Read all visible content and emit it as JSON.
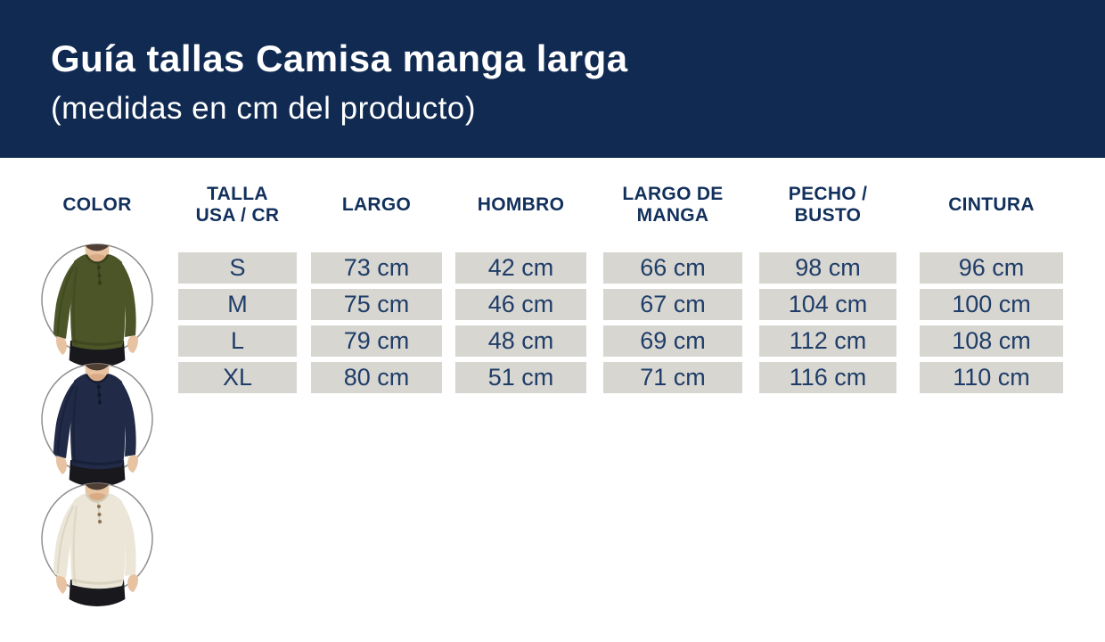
{
  "header": {
    "title": "Guía tallas Camisa manga larga",
    "subtitle": "(medidas en cm del producto)"
  },
  "table": {
    "columns": [
      {
        "id": "color",
        "label": "COLOR"
      },
      {
        "id": "size",
        "label": "TALLA\nUSA / CR"
      },
      {
        "id": "largo",
        "label": "LARGO"
      },
      {
        "id": "hombro",
        "label": "HOMBRO"
      },
      {
        "id": "manga",
        "label": "LARGO DE\nMANGA"
      },
      {
        "id": "pecho",
        "label": "PECHO /\nBUSTO"
      },
      {
        "id": "cintura",
        "label": "CINTURA"
      }
    ],
    "rows": [
      {
        "size": "S",
        "largo": "73 cm",
        "hombro": "42 cm",
        "manga": "66 cm",
        "pecho": "98 cm",
        "cintura": "96 cm"
      },
      {
        "size": "M",
        "largo": "75 cm",
        "hombro": "46 cm",
        "manga": "67 cm",
        "pecho": "104 cm",
        "cintura": "100 cm"
      },
      {
        "size": "L",
        "largo": "79 cm",
        "hombro": "48 cm",
        "manga": "69 cm",
        "pecho": "112 cm",
        "cintura": "108 cm"
      },
      {
        "size": "XL",
        "largo": "80 cm",
        "hombro": "51 cm",
        "manga": "71 cm",
        "pecho": "116 cm",
        "cintura": "110 cm"
      }
    ]
  },
  "products": [
    {
      "id": "verde-olivo",
      "name": "shirt-photo-olive-green",
      "shirt_hex": "#4b5527",
      "shade_hex": "#39421d",
      "button_hex": "#333d18"
    },
    {
      "id": "azul-marino",
      "name": "shirt-photo-navy-blue",
      "shirt_hex": "#212a46",
      "shade_hex": "#161d33",
      "button_hex": "#12182b"
    },
    {
      "id": "crema",
      "name": "shirt-photo-cream",
      "shirt_hex": "#ebe6d8",
      "shade_hex": "#d2cab6",
      "button_hex": "#8a6f4e"
    }
  ],
  "colors": {
    "banner_bg": "#102a52",
    "banner_text": "#ffffff",
    "header_text": "#12305c",
    "cell_bg": "#d8d6d1",
    "cell_text": "#1e3d68",
    "circle_border": "#8f8f8f",
    "skin": "#e8c3a2",
    "pants": "#18181d"
  }
}
